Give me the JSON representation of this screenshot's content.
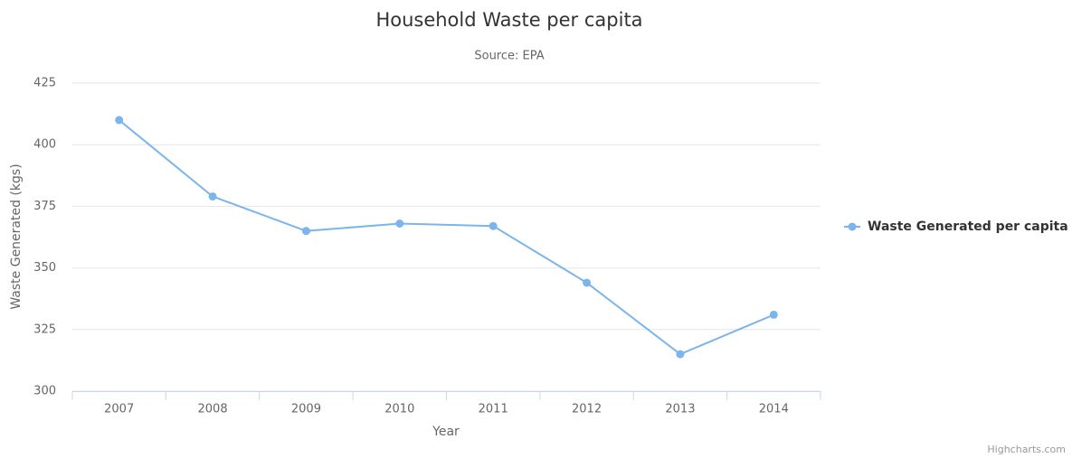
{
  "chart_data": {
    "type": "line",
    "title": "Household Waste per capita",
    "subtitle": "Source: EPA",
    "x_label": "Year",
    "y_label": "Waste Generated (kgs)",
    "categories": [
      "2007",
      "2008",
      "2009",
      "2010",
      "2011",
      "2012",
      "2013",
      "2014"
    ],
    "series": [
      {
        "name": "Waste Generated per capita",
        "color": "#7cb5ec",
        "values": [
          410,
          379,
          365,
          368,
          367,
          344,
          315,
          331
        ]
      }
    ],
    "ylim": [
      300,
      425
    ],
    "yticks": [
      300,
      325,
      350,
      375,
      400,
      425
    ],
    "grid": true,
    "legend": "right",
    "credits": "Highcharts.com"
  }
}
